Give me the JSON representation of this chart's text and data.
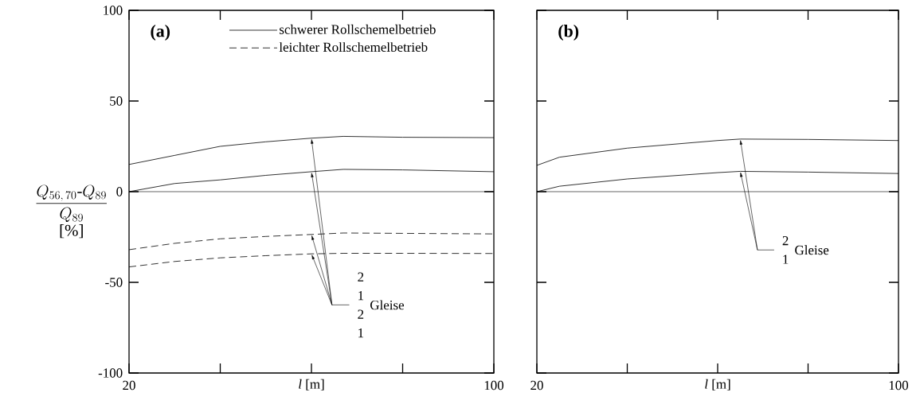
{
  "chart_data": [
    {
      "type": "line",
      "title": "(a)",
      "xlabel": "*l* [m]",
      "ylabel": "\\begin{array}{c}\\dfrac{Q_{56,\\,70}\\mbox{-}Q_{89}}{Q_{89}}\\\\ \\mbox{[\\%]}\\end{array}",
      "xlim": [
        20,
        100
      ],
      "ylim": [
        -100,
        100
      ],
      "xticks": [
        20,
        {
          "value": 40,
          "label": null
        },
        {
          "value": 60,
          "label": null
        },
        {
          "value": 80,
          "label": null
        },
        100
      ],
      "yticks": [
        -100,
        -50,
        0,
        50,
        100
      ],
      "grid": false,
      "legend": "top",
      "marker": "none",
      "ref_lines": [
        {
          "axis": "y",
          "value": 0
        }
      ],
      "annotations": [
        "2",
        "1",
        "2",
        "1",
        "Gleise"
      ],
      "x": [
        20,
        30,
        40,
        50,
        60,
        67,
        80,
        100
      ],
      "series": [
        {
          "name": "schwerer Rollschemelbetrieb",
          "color": "#000000",
          "line_style": "solid",
          "values": [
            15,
            20,
            25,
            27.5,
            29.5,
            30.5,
            30,
            29.8
          ]
        },
        {
          "color": "#000000",
          "line_style": "solid",
          "values": [
            0,
            4.5,
            6.5,
            9,
            11,
            12.3,
            12,
            11
          ]
        },
        {
          "name": "leichter Rollschemelbetrieb",
          "color": "#000000",
          "line_style": "dashed",
          "values": [
            -32,
            -28.5,
            -26,
            -24.7,
            -23.6,
            -22.8,
            -23,
            -23.3
          ]
        },
        {
          "color": "#000000",
          "line_style": "dashed",
          "values": [
            -41.5,
            -38.5,
            -36.5,
            -35.3,
            -34.3,
            -34,
            -34,
            -34.1
          ]
        }
      ]
    },
    {
      "type": "line",
      "title": "(b)",
      "xlabel": "*l* [m]",
      "xlim": [
        20,
        100
      ],
      "ylim": [
        -100,
        100
      ],
      "xticks": [
        20,
        {
          "value": 40,
          "label": null
        },
        {
          "value": 60,
          "label": null
        },
        {
          "value": 80,
          "label": null
        },
        100
      ],
      "yticks": [
        -100,
        -50,
        0,
        50,
        100
      ],
      "tick_labels": "x",
      "grid": false,
      "marker": "none",
      "ref_lines": [
        {
          "axis": "y",
          "value": 0
        }
      ],
      "annotations": [
        "2",
        "1",
        "Gleise"
      ],
      "x": [
        20,
        25,
        40,
        60,
        65,
        80,
        100
      ],
      "series": [
        {
          "color": "#000000",
          "line_style": "solid",
          "values": [
            14.5,
            19,
            24,
            28.2,
            29,
            28.8,
            28.2
          ]
        },
        {
          "color": "#000000",
          "line_style": "solid",
          "values": [
            0,
            3,
            7,
            10.5,
            11.2,
            10.8,
            10
          ]
        }
      ]
    }
  ]
}
